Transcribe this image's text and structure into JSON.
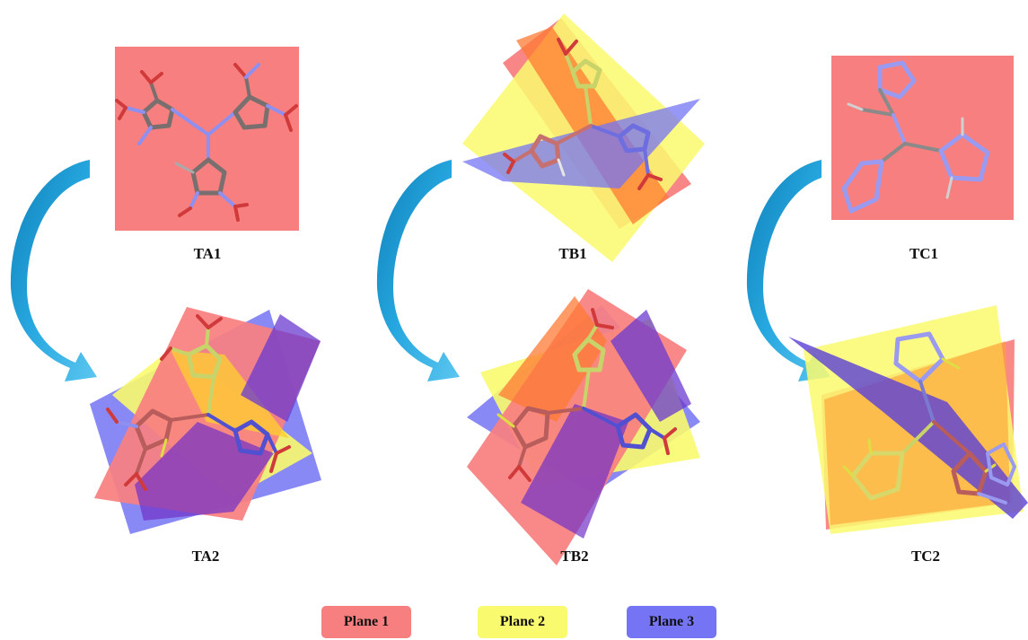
{
  "panels": {
    "ta1": "TA1",
    "tb1": "TB1",
    "tc1": "TC1",
    "ta2": "TA2",
    "tb2": "TB2",
    "tc2": "TC2"
  },
  "legend": {
    "plane1": "Plane 1",
    "plane2": "Plane 2",
    "plane3": "Plane 3"
  },
  "colors": {
    "plane1": "#f87f7f",
    "plane2": "#fafa6e",
    "plane3": "#7474f4",
    "arrow": "#22a6dc",
    "atom_o": "#d13a3a",
    "atom_n": "#8f8ff0",
    "atom_c": "#808080"
  }
}
